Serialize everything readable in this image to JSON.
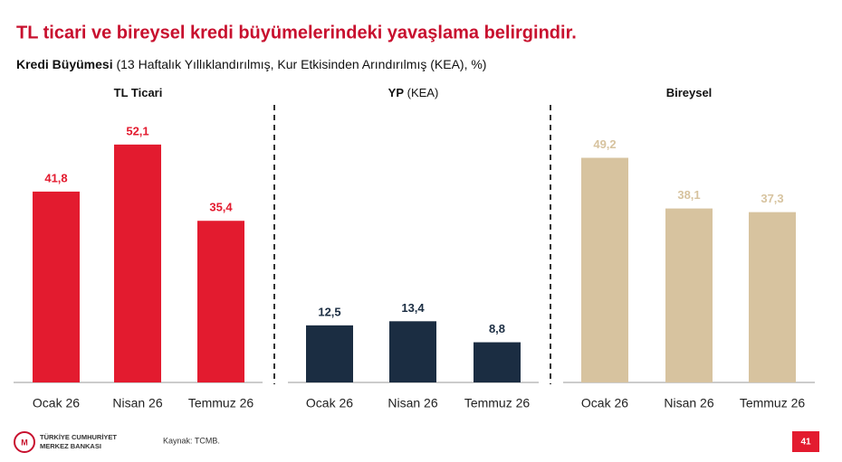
{
  "header": {
    "title": "TL ticari ve bireysel kredi büyümelerindeki yavaşlama belirgindir.",
    "subtitle_bold": "Kredi Büyümesi",
    "subtitle_rest": "(13 Haftalık Yıllıklandırılmış, Kur Etkisinden Arındırılmış (KEA), %)"
  },
  "chart_data": [
    {
      "type": "bar",
      "title": "TL Ticari",
      "categories": [
        "Ocak 26",
        "Nisan 26",
        "Temmuz 26"
      ],
      "values": [
        41.8,
        52.1,
        35.4
      ],
      "value_labels": [
        "41,8",
        "52,1",
        "35,4"
      ],
      "color": "#e31b2f"
    },
    {
      "type": "bar",
      "title": "YP",
      "subtitle": "(KEA)",
      "categories": [
        "Ocak 26",
        "Nisan 26",
        "Temmuz 26"
      ],
      "values": [
        12.5,
        13.4,
        8.8
      ],
      "value_labels": [
        "12,5",
        "13,4",
        "8,8"
      ],
      "color": "#1b2d42"
    },
    {
      "type": "bar",
      "title": "Bireysel",
      "categories": [
        "Ocak 26",
        "Nisan 26",
        "Temmuz 26"
      ],
      "values": [
        49.2,
        38.1,
        37.3
      ],
      "value_labels": [
        "49,2",
        "38,1",
        "37,3"
      ],
      "color": "#d7c39f"
    }
  ],
  "footer": {
    "logo_line1": "TÜRKİYE CUMHURİYET",
    "logo_line2": "MERKEZ BANKASI",
    "source": "Kaynak: TCMB.",
    "page": "41"
  }
}
